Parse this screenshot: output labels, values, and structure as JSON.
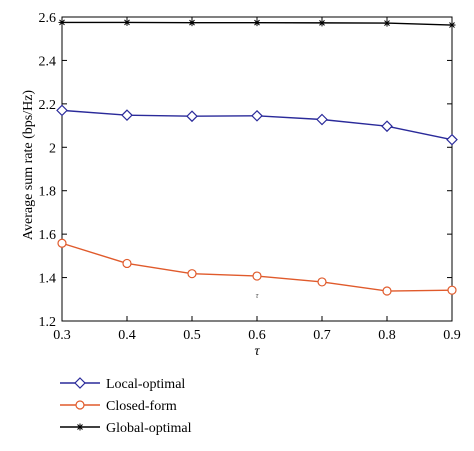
{
  "chart_data": {
    "type": "line",
    "title": "",
    "xlabel": "τ",
    "ylabel": "Average sum rate (bps/Hz)",
    "xlim": [
      0.3,
      0.9
    ],
    "ylim": [
      1.2,
      2.6
    ],
    "x": [
      0.3,
      0.4,
      0.5,
      0.6,
      0.7,
      0.8,
      0.9
    ],
    "x_ticks": [
      "0.3",
      "0.4",
      "0.5",
      "0.6",
      "0.7",
      "0.8",
      "0.9"
    ],
    "y_ticks": [
      1.2,
      1.4,
      1.6,
      1.8,
      2.0,
      2.2,
      2.4,
      2.6
    ],
    "y_tick_labels": [
      "1.2",
      "1.4",
      "1.6",
      "1.8",
      "2",
      "2.2",
      "2.4",
      "2.6"
    ],
    "grid": false,
    "legend_position": "below",
    "annotation": "τ",
    "series": [
      {
        "name": "Local-optimal",
        "color": "#2a2a9a",
        "marker": "diamond",
        "values": [
          2.17,
          2.148,
          2.143,
          2.145,
          2.128,
          2.097,
          2.035
        ]
      },
      {
        "name": "Closed-form",
        "color": "#e05a2b",
        "marker": "circle",
        "values": [
          1.558,
          1.465,
          1.418,
          1.407,
          1.38,
          1.338,
          1.342
        ]
      },
      {
        "name": "Global-optimal",
        "color": "#000000",
        "marker": "asterisk",
        "values": [
          2.575,
          2.575,
          2.574,
          2.574,
          2.573,
          2.572,
          2.563
        ]
      }
    ]
  }
}
